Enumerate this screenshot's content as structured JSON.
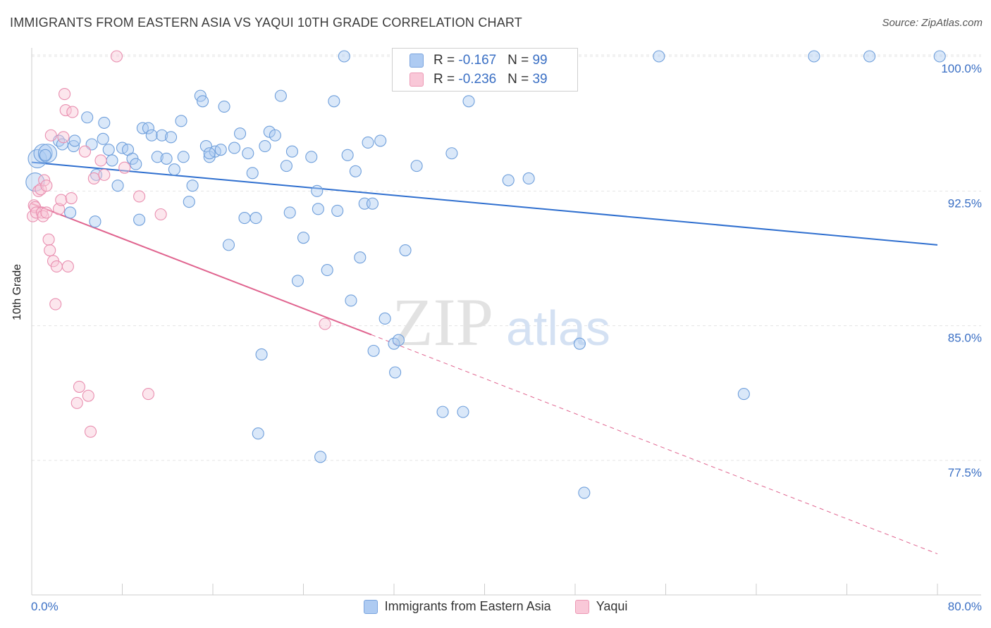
{
  "title": "IMMIGRANTS FROM EASTERN ASIA VS YAQUI 10TH GRADE CORRELATION CHART",
  "source": "Source: ZipAtlas.com",
  "watermark": {
    "zip": "ZIP",
    "atlas": "atlas"
  },
  "legend_stats": [
    {
      "r_label": "R = ",
      "r_value": "-0.167",
      "n_label": "N = ",
      "n_value": "99",
      "color": "#aecbf2"
    },
    {
      "r_label": "R = ",
      "r_value": "-0.236",
      "n_label": "N = ",
      "n_value": "39",
      "color": "#f9c8d8"
    }
  ],
  "bottom_legend": [
    "Immigrants from Eastern Asia",
    "Yaqui"
  ],
  "x_min_label": "0.0%",
  "x_max_label": "80.0%",
  "chart_data": {
    "type": "scatter",
    "xlabel": "",
    "ylabel": "10th Grade",
    "xlim": [
      0,
      80
    ],
    "ylim": [
      71.0,
      100.8
    ],
    "y_ticks": [
      {
        "value": 100.0,
        "label": "100.0%"
      },
      {
        "value": 92.5,
        "label": "92.5%"
      },
      {
        "value": 85.0,
        "label": "85.0%"
      },
      {
        "value": 77.5,
        "label": "77.5%"
      }
    ],
    "grid": true,
    "legend_position": "top-center",
    "series": [
      {
        "name": "Immigrants from Eastern Asia",
        "color": "#aecbf2",
        "stroke": "#6f9fdb",
        "trend": {
          "x": [
            0,
            80
          ],
          "y": [
            94.1,
            89.5
          ],
          "color": "#2f6fcf"
        },
        "points": [
          [
            0.3,
            93.0
          ],
          [
            0.5,
            94.3
          ],
          [
            1.0,
            94.6
          ],
          [
            1.4,
            94.6
          ],
          [
            1.2,
            94.5
          ],
          [
            2.4,
            95.3
          ],
          [
            2.7,
            95.1
          ],
          [
            3.7,
            95.0
          ],
          [
            3.8,
            95.3
          ],
          [
            3.4,
            91.3
          ],
          [
            4.9,
            96.6
          ],
          [
            5.3,
            95.1
          ],
          [
            5.7,
            93.4
          ],
          [
            5.6,
            90.8
          ],
          [
            6.3,
            95.4
          ],
          [
            6.4,
            96.3
          ],
          [
            6.8,
            94.8
          ],
          [
            7.1,
            94.2
          ],
          [
            7.6,
            92.8
          ],
          [
            8.0,
            94.9
          ],
          [
            8.5,
            94.8
          ],
          [
            8.9,
            94.3
          ],
          [
            9.2,
            94.0
          ],
          [
            9.5,
            90.9
          ],
          [
            9.8,
            96.0
          ],
          [
            10.3,
            96.0
          ],
          [
            10.6,
            95.6
          ],
          [
            11.1,
            94.4
          ],
          [
            11.5,
            95.6
          ],
          [
            11.9,
            94.3
          ],
          [
            12.3,
            95.5
          ],
          [
            12.6,
            93.7
          ],
          [
            13.2,
            96.4
          ],
          [
            13.4,
            94.4
          ],
          [
            13.9,
            91.9
          ],
          [
            14.2,
            92.8
          ],
          [
            14.9,
            97.8
          ],
          [
            15.1,
            97.5
          ],
          [
            15.4,
            95.0
          ],
          [
            15.7,
            94.4
          ],
          [
            16.2,
            94.7
          ],
          [
            16.7,
            94.8
          ],
          [
            17.0,
            97.2
          ],
          [
            17.4,
            89.5
          ],
          [
            17.9,
            94.9
          ],
          [
            18.4,
            95.7
          ],
          [
            18.8,
            91.0
          ],
          [
            19.1,
            94.6
          ],
          [
            19.5,
            93.5
          ],
          [
            20.0,
            79.0
          ],
          [
            20.6,
            95.0
          ],
          [
            21.0,
            95.8
          ],
          [
            21.5,
            95.6
          ],
          [
            22.0,
            97.8
          ],
          [
            22.5,
            93.9
          ],
          [
            22.8,
            91.3
          ],
          [
            23.0,
            94.7
          ],
          [
            23.5,
            87.5
          ],
          [
            24.0,
            89.9
          ],
          [
            24.7,
            94.4
          ],
          [
            25.2,
            92.5
          ],
          [
            25.5,
            77.7
          ],
          [
            26.1,
            88.1
          ],
          [
            26.7,
            97.5
          ],
          [
            27.0,
            91.4
          ],
          [
            27.9,
            94.5
          ],
          [
            28.2,
            86.4
          ],
          [
            28.6,
            93.6
          ],
          [
            29.0,
            88.8
          ],
          [
            29.4,
            91.8
          ],
          [
            29.7,
            95.2
          ],
          [
            30.2,
            83.6
          ],
          [
            30.8,
            95.3
          ],
          [
            31.2,
            85.4
          ],
          [
            32.0,
            84.0
          ],
          [
            32.1,
            82.4
          ],
          [
            32.4,
            84.2
          ],
          [
            33.0,
            89.2
          ],
          [
            34.0,
            93.9
          ],
          [
            36.3,
            80.2
          ],
          [
            37.1,
            94.6
          ],
          [
            38.1,
            80.2
          ],
          [
            38.6,
            97.5
          ],
          [
            42.1,
            93.1
          ],
          [
            43.9,
            93.2
          ],
          [
            48.4,
            84.0
          ],
          [
            48.8,
            75.7
          ],
          [
            62.9,
            81.2
          ],
          [
            69.1,
            100.0
          ],
          [
            74.0,
            100.0
          ],
          [
            80.2,
            100.0
          ],
          [
            27.6,
            100.0
          ],
          [
            40.7,
            100.0
          ],
          [
            55.4,
            100.0
          ],
          [
            20.3,
            83.4
          ],
          [
            25.3,
            91.5
          ],
          [
            15.7,
            94.6
          ],
          [
            30.1,
            91.8
          ],
          [
            19.8,
            91.0
          ]
        ]
      },
      {
        "name": "Yaqui",
        "color": "#f9c8d8",
        "stroke": "#e98fb0",
        "trend": {
          "x": [
            0,
            30
          ],
          "y": [
            91.8,
            84.5
          ],
          "dash_to": {
            "x": 80,
            "y": 72.3
          },
          "color": "#e0648f"
        },
        "points": [
          [
            0.1,
            91.1
          ],
          [
            0.2,
            91.7
          ],
          [
            0.3,
            91.6
          ],
          [
            0.4,
            91.3
          ],
          [
            0.6,
            92.5
          ],
          [
            0.8,
            92.6
          ],
          [
            0.9,
            91.3
          ],
          [
            1.0,
            91.1
          ],
          [
            1.1,
            93.1
          ],
          [
            1.3,
            92.8
          ],
          [
            1.3,
            91.3
          ],
          [
            1.5,
            89.8
          ],
          [
            1.6,
            89.2
          ],
          [
            1.7,
            95.6
          ],
          [
            1.9,
            88.6
          ],
          [
            2.1,
            86.2
          ],
          [
            2.2,
            88.3
          ],
          [
            2.4,
            91.5
          ],
          [
            2.6,
            92.0
          ],
          [
            2.8,
            95.5
          ],
          [
            2.9,
            97.9
          ],
          [
            3.0,
            97.0
          ],
          [
            3.2,
            88.3
          ],
          [
            3.5,
            92.1
          ],
          [
            3.6,
            96.9
          ],
          [
            4.0,
            80.7
          ],
          [
            4.2,
            81.6
          ],
          [
            4.7,
            94.7
          ],
          [
            5.0,
            81.1
          ],
          [
            5.2,
            79.1
          ],
          [
            5.5,
            93.2
          ],
          [
            6.1,
            94.2
          ],
          [
            6.4,
            93.4
          ],
          [
            7.5,
            100.0
          ],
          [
            8.2,
            93.8
          ],
          [
            9.5,
            92.2
          ],
          [
            10.3,
            81.2
          ],
          [
            11.4,
            91.2
          ],
          [
            25.9,
            85.1
          ]
        ]
      }
    ]
  }
}
